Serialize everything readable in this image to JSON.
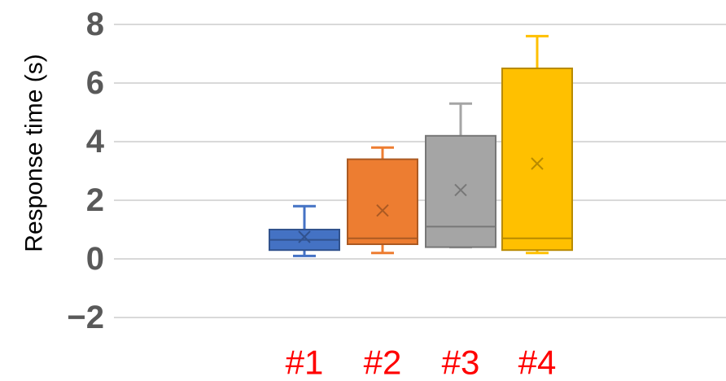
{
  "chart_data": {
    "type": "box",
    "title": "",
    "xlabel": "",
    "ylabel": "Response time (s)",
    "ylim": [
      -2,
      8
    ],
    "yticks": [
      -2,
      0,
      2,
      4,
      6,
      8
    ],
    "grid": true,
    "legend": "none",
    "category_label_color": "#ff0000",
    "categories": [
      "#1",
      "#2",
      "#3",
      "#4"
    ],
    "series": [
      {
        "category": "#1",
        "color": "#4472c4",
        "min": 0.1,
        "q1": 0.3,
        "median": 0.65,
        "q3": 1.0,
        "max": 1.8,
        "mean": 0.75
      },
      {
        "category": "#2",
        "color": "#ed7d31",
        "min": 0.2,
        "q1": 0.5,
        "median": 0.7,
        "q3": 3.4,
        "max": 3.8,
        "mean": 1.65
      },
      {
        "category": "#3",
        "color": "#a5a5a5",
        "min": 0.4,
        "q1": 0.4,
        "median": 1.1,
        "q3": 4.2,
        "max": 5.3,
        "mean": 2.35
      },
      {
        "category": "#4",
        "color": "#ffc000",
        "min": 0.2,
        "q1": 0.3,
        "median": 0.7,
        "q3": 6.5,
        "max": 7.6,
        "mean": 3.25
      }
    ]
  }
}
